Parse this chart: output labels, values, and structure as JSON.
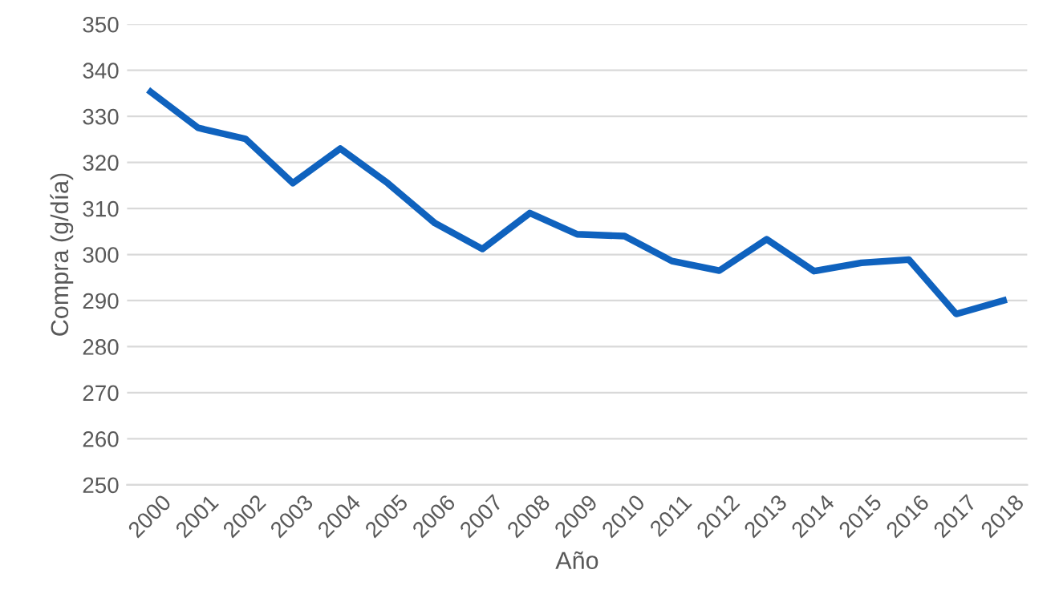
{
  "chart_data": {
    "type": "line",
    "xlabel": "Año",
    "ylabel": "Compra (g/día)",
    "categories": [
      "2000",
      "2001",
      "2002",
      "2003",
      "2004",
      "2005",
      "2006",
      "2007",
      "2008",
      "2009",
      "2010",
      "2011",
      "2012",
      "2013",
      "2014",
      "2015",
      "2016",
      "2017",
      "2018"
    ],
    "series": [
      {
        "color": "#0f62be",
        "values": [
          335.3,
          327.5,
          325.1,
          315.5,
          323,
          315.5,
          306.8,
          301.2,
          309,
          304.4,
          304,
          298.6,
          296.5,
          303.3,
          296.4,
          298.2,
          298.9,
          287.1,
          290
        ]
      }
    ],
    "ylim": [
      250,
      350
    ],
    "yticks": [
      250,
      260,
      270,
      280,
      290,
      300,
      310,
      320,
      330,
      340,
      350
    ],
    "grid": "y",
    "marker": "none",
    "line_style": "solid"
  }
}
